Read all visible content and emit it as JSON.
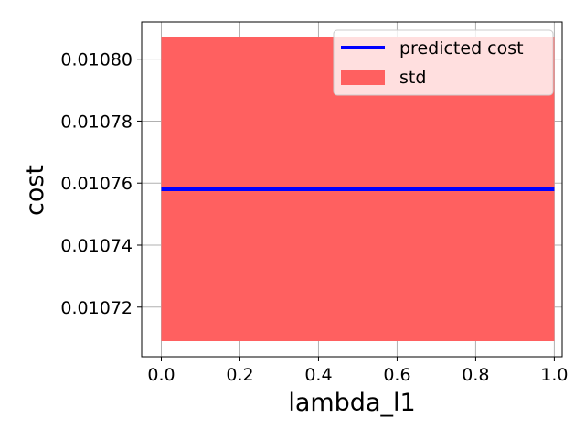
{
  "chart_data": {
    "type": "line",
    "title": "",
    "xlabel": "lambda_l1",
    "ylabel": "cost",
    "x": [
      0.0,
      1.0
    ],
    "xlim": [
      -0.05,
      1.02
    ],
    "ylim": [
      0.010704,
      0.010812
    ],
    "xticks": [
      0.0,
      0.2,
      0.4,
      0.6,
      0.8,
      1.0
    ],
    "xtick_labels": [
      "0.0",
      "0.2",
      "0.4",
      "0.6",
      "0.8",
      "1.0"
    ],
    "yticks": [
      0.01072,
      0.01074,
      0.01076,
      0.01078,
      0.0108
    ],
    "ytick_labels": [
      "0.01072",
      "0.01074",
      "0.01076",
      "0.01078",
      "0.01080"
    ],
    "grid": true,
    "legend_position": "top-right",
    "series": [
      {
        "name": "predicted cost",
        "kind": "line",
        "color": "#0000ff",
        "values": [
          0.010758,
          0.010758
        ]
      },
      {
        "name": "std",
        "kind": "band",
        "color": "#ff6060",
        "lower": [
          0.010709,
          0.010709
        ],
        "upper": [
          0.010807,
          0.010807
        ]
      }
    ]
  }
}
